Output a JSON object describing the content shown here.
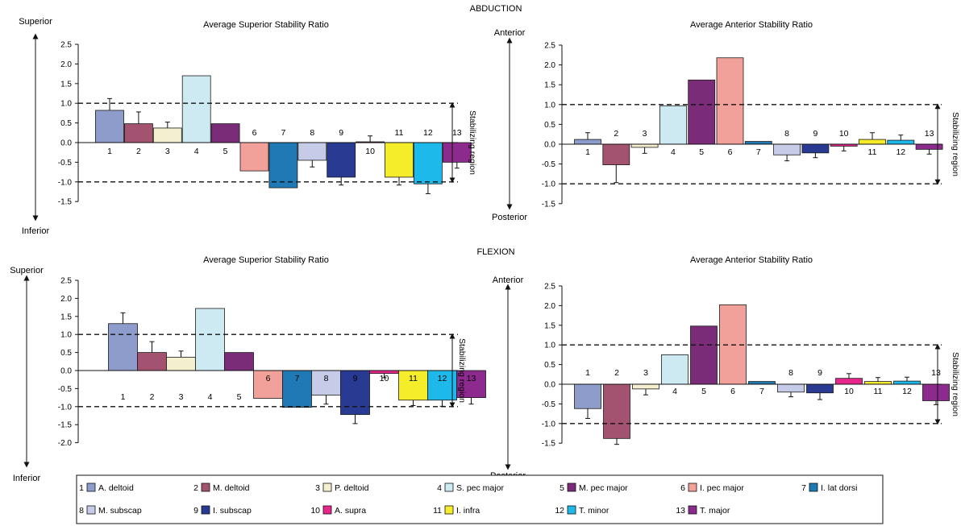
{
  "section_titles": {
    "top": "ABDUCTION",
    "bottom": "FLEXION"
  },
  "direction_labels": {
    "superior": "Superior",
    "inferior": "Inferior",
    "anterior": "Anterior",
    "posterior": "Posterior",
    "stabilizing": "Stabilizing region"
  },
  "colors": {
    "1": "#8e9ccb",
    "2": "#a3536f",
    "3": "#f3efcf",
    "4": "#cdeaf2",
    "5": "#7a2c79",
    "6": "#f2a19a",
    "7": "#1f79b4",
    "8": "#c6cbe8",
    "9": "#283a92",
    "10": "#e8258a",
    "11": "#f5ec2a",
    "12": "#1cb9ea",
    "13": "#8d2a8d"
  },
  "legend": [
    {
      "num": "1",
      "name": "A. deltoid"
    },
    {
      "num": "2",
      "name": "M. deltoid"
    },
    {
      "num": "3",
      "name": "P. deltoid"
    },
    {
      "num": "4",
      "name": "S. pec major"
    },
    {
      "num": "5",
      "name": "M. pec major"
    },
    {
      "num": "6",
      "name": "I. pec major"
    },
    {
      "num": "7",
      "name": "I. lat dorsi"
    },
    {
      "num": "8",
      "name": "M. subscap"
    },
    {
      "num": "9",
      "name": "I. subscap"
    },
    {
      "num": "10",
      "name": "A. supra"
    },
    {
      "num": "11",
      "name": "I. infra"
    },
    {
      "num": "12",
      "name": "T. minor"
    },
    {
      "num": "13",
      "name": "T. major"
    }
  ],
  "chart_data": [
    {
      "type": "bar",
      "section": "ABDUCTION",
      "title": "Average Superior Stability Ratio",
      "categories": [
        "1",
        "2",
        "3",
        "4",
        "5",
        "6",
        "7",
        "8",
        "9",
        "10",
        "11",
        "12",
        "13"
      ],
      "values": [
        0.82,
        0.48,
        0.37,
        1.7,
        0.48,
        -0.72,
        -1.15,
        -0.45,
        -0.88,
        0.02,
        -0.88,
        -1.05,
        -0.5
      ],
      "errors": [
        0.3,
        0.3,
        0.15,
        0,
        0,
        0,
        0,
        0.17,
        0.2,
        0.15,
        0.2,
        0.25,
        0.15
      ],
      "ylim": [
        -1.5,
        2.5
      ],
      "yticks": [
        "2.5",
        "2.0",
        "1.5",
        "1.0",
        "0.5",
        "0.0",
        "-0.5",
        "-1.0",
        "-1.5"
      ],
      "reference_lines": [
        1.0,
        -1.0
      ],
      "top_label": "Superior",
      "bottom_label": "Inferior"
    },
    {
      "type": "bar",
      "section": "ABDUCTION",
      "title": "Average Anterior Stability Ratio",
      "categories": [
        "1",
        "2",
        "3",
        "4",
        "5",
        "6",
        "7",
        "8",
        "9",
        "10",
        "11",
        "12",
        "13"
      ],
      "values": [
        0.12,
        -0.52,
        -0.08,
        0.97,
        1.62,
        2.18,
        0.07,
        -0.27,
        -0.22,
        -0.05,
        0.12,
        0.1,
        -0.13
      ],
      "errors": [
        0.17,
        0.45,
        0.15,
        0,
        0,
        0,
        0,
        0.15,
        0.12,
        0.12,
        0.17,
        0.13,
        0.12
      ],
      "ylim": [
        -1.5,
        2.5
      ],
      "yticks": [
        "2.5",
        "2.0",
        "1.5",
        "1.0",
        "0.5",
        "0.0",
        "-0.5",
        "-1.0",
        "-1.5"
      ],
      "reference_lines": [
        1.0,
        -1.0
      ],
      "top_label": "Anterior",
      "bottom_label": "Posterior"
    },
    {
      "type": "bar",
      "section": "FLEXION",
      "title": "Average Superior Stability Ratio",
      "categories": [
        "1",
        "2",
        "3",
        "4",
        "5",
        "6",
        "7",
        "8",
        "9",
        "10",
        "11",
        "12",
        "13"
      ],
      "values": [
        1.3,
        0.5,
        0.37,
        1.72,
        0.5,
        -0.77,
        -1.02,
        -0.68,
        -1.22,
        -0.08,
        -0.82,
        -0.82,
        -0.75
      ],
      "errors": [
        0.3,
        0.3,
        0.17,
        0,
        0,
        0,
        0,
        0.25,
        0.25,
        0.12,
        0.15,
        0.17,
        0.18
      ],
      "ylim": [
        -2.0,
        2.5
      ],
      "yticks": [
        "2.5",
        "2.0",
        "1.5",
        "1.0",
        "0.5",
        "0.0",
        "-0.5",
        "-1.0",
        "-1.5",
        "-2.0"
      ],
      "reference_lines": [
        1.0,
        -1.0
      ],
      "top_label": "Superior",
      "bottom_label": "Inferior"
    },
    {
      "type": "bar",
      "section": "FLEXION",
      "title": "Average Anterior Stability Ratio",
      "categories": [
        "1",
        "2",
        "3",
        "4",
        "5",
        "6",
        "7",
        "8",
        "9",
        "10",
        "11",
        "12",
        "13"
      ],
      "values": [
        -0.62,
        -1.38,
        -0.12,
        0.75,
        1.48,
        2.02,
        0.07,
        -0.2,
        -0.22,
        0.15,
        0.07,
        0.08,
        -0.42
      ],
      "errors": [
        0.25,
        0.15,
        0.15,
        0,
        0,
        0,
        0,
        0.12,
        0.17,
        0.12,
        0.1,
        0.1,
        0.1
      ],
      "ylim": [
        -1.5,
        2.5
      ],
      "yticks": [
        "2.5",
        "2.0",
        "1.5",
        "1.0",
        "0.5",
        "0.0",
        "-0.5",
        "-1.0",
        "-1.5"
      ],
      "reference_lines": [
        1.0,
        -1.0
      ],
      "top_label": "Anterior",
      "bottom_label": "Posterior"
    }
  ]
}
